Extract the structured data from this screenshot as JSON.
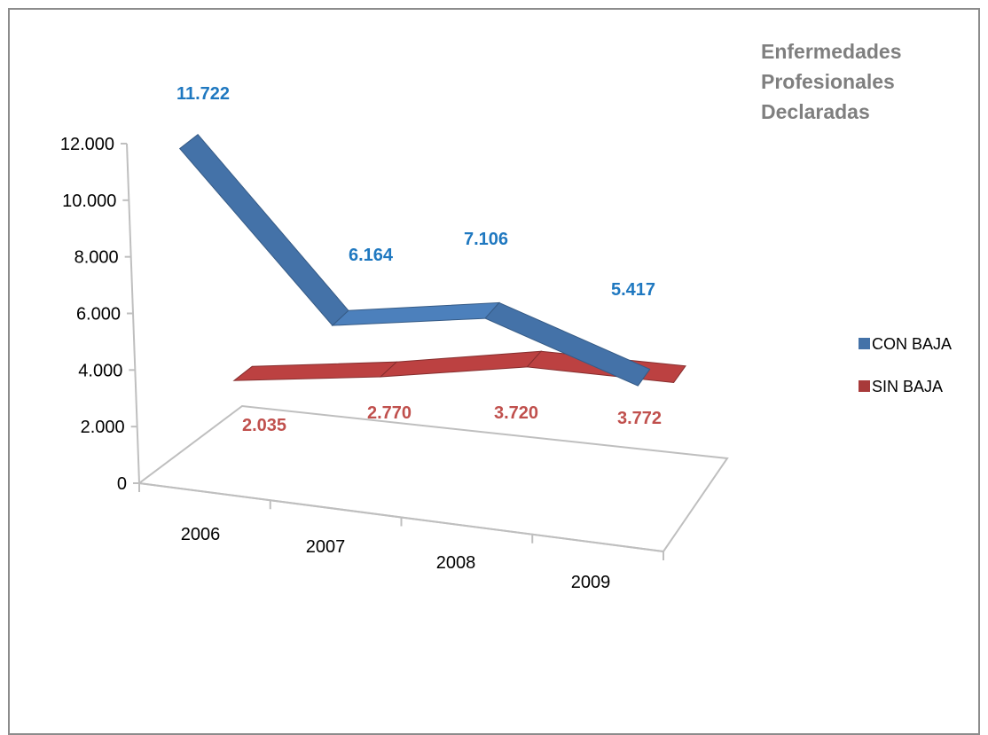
{
  "chart_data": {
    "type": "line",
    "style": "3d-ribbon",
    "title_lines": [
      "Enfermedades",
      "Profesionales",
      "Declaradas"
    ],
    "categories": [
      "2006",
      "2007",
      "2008",
      "2009"
    ],
    "yticks": [
      "0",
      "2.000",
      "4.000",
      "6.000",
      "8.000",
      "10.000",
      "12.000"
    ],
    "ylim": [
      0,
      12000
    ],
    "series": [
      {
        "name": "CON BAJA",
        "values": [
          11722,
          6164,
          7106,
          5417
        ],
        "labels": [
          "11.722",
          "6.164",
          "7.106",
          "5.417"
        ],
        "color": "#4472a8",
        "label_color": "#1f78c0"
      },
      {
        "name": "SIN BAJA",
        "values": [
          2035,
          2770,
          3720,
          3772
        ],
        "labels": [
          "2.035",
          "2.770",
          "3.720",
          "3.772"
        ],
        "color": "#a83a3a",
        "label_color": "#c0504d"
      }
    ],
    "legend_position": "right",
    "grid": false
  }
}
